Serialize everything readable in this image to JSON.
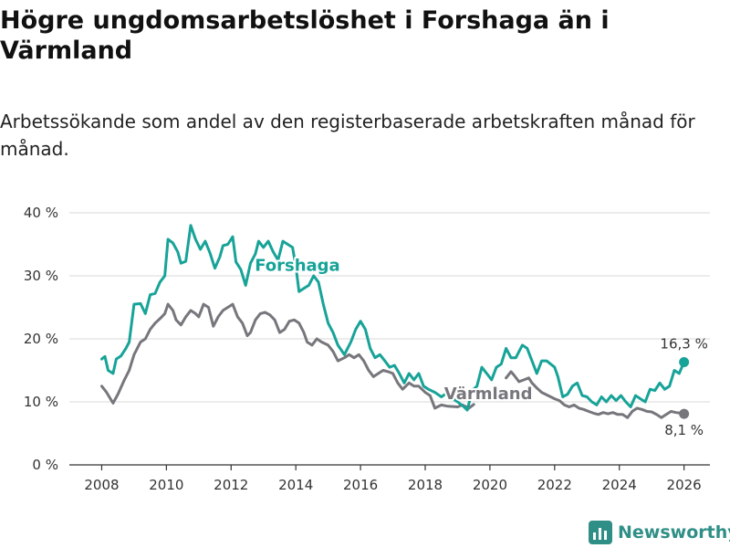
{
  "title": "Högre ungdomsarbetslöshet i Forshaga än i Värmland",
  "subtitle": "Arbetssökande som andel av den registerbaserade arbetskraften månad för månad.",
  "brand": "Newsworthy",
  "colors": {
    "forshaga": "#17a398",
    "varmland": "#77767c",
    "grid": "#d8d8d8",
    "brand": "#2f8f86"
  },
  "chart_data": {
    "type": "line",
    "title": "Högre ungdomsarbetslöshet i Forshaga än i Värmland",
    "xlabel": "",
    "ylabel": "",
    "xlim": [
      2007,
      2026.8
    ],
    "ylim": [
      0,
      40
    ],
    "y_ticks": [
      {
        "value": 0,
        "label": "0 %"
      },
      {
        "value": 10,
        "label": "10 %"
      },
      {
        "value": 20,
        "label": "20 %"
      },
      {
        "value": 30,
        "label": "30 %"
      },
      {
        "value": 40,
        "label": "40 %"
      }
    ],
    "x_ticks": [
      {
        "value": 2008,
        "label": "2008"
      },
      {
        "value": 2010,
        "label": "2010"
      },
      {
        "value": 2012,
        "label": "2012"
      },
      {
        "value": 2014,
        "label": "2014"
      },
      {
        "value": 2016,
        "label": "2016"
      },
      {
        "value": 2018,
        "label": "2018"
      },
      {
        "value": 2020,
        "label": "2020"
      },
      {
        "value": 2022,
        "label": "2022"
      },
      {
        "value": 2024,
        "label": "2024"
      },
      {
        "value": 2026,
        "label": "2026"
      }
    ],
    "series": [
      {
        "name": "Forshaga",
        "color": "#17a398",
        "label": "Forshaga",
        "end_label": "16,3 %",
        "points": [
          [
            2008.0,
            16.8
          ],
          [
            2008.1,
            17.2
          ],
          [
            2008.2,
            15.0
          ],
          [
            2008.35,
            14.5
          ],
          [
            2008.45,
            16.8
          ],
          [
            2008.6,
            17.3
          ],
          [
            2008.75,
            18.5
          ],
          [
            2008.85,
            19.5
          ],
          [
            2009.0,
            25.5
          ],
          [
            2009.2,
            25.6
          ],
          [
            2009.35,
            24.0
          ],
          [
            2009.5,
            27.0
          ],
          [
            2009.65,
            27.2
          ],
          [
            2009.8,
            29.0
          ],
          [
            2009.95,
            30.0
          ],
          [
            2010.05,
            35.8
          ],
          [
            2010.2,
            35.2
          ],
          [
            2010.35,
            33.8
          ],
          [
            2010.45,
            32.0
          ],
          [
            2010.6,
            32.3
          ],
          [
            2010.75,
            38.0
          ],
          [
            2010.9,
            35.8
          ],
          [
            2011.05,
            34.2
          ],
          [
            2011.2,
            35.5
          ],
          [
            2011.35,
            33.6
          ],
          [
            2011.5,
            31.2
          ],
          [
            2011.65,
            33.0
          ],
          [
            2011.75,
            34.8
          ],
          [
            2011.9,
            35.0
          ],
          [
            2012.05,
            36.2
          ],
          [
            2012.15,
            32.2
          ],
          [
            2012.3,
            31.0
          ],
          [
            2012.45,
            28.5
          ],
          [
            2012.6,
            32.0
          ],
          [
            2012.75,
            33.5
          ],
          [
            2012.85,
            35.5
          ],
          [
            2013.0,
            34.5
          ],
          [
            2013.15,
            35.5
          ],
          [
            2013.3,
            33.8
          ],
          [
            2013.45,
            32.5
          ],
          [
            2013.6,
            35.5
          ],
          [
            2013.75,
            35.0
          ],
          [
            2013.9,
            34.5
          ],
          [
            2014.0,
            31.5
          ],
          [
            2014.1,
            27.5
          ],
          [
            2014.25,
            28.0
          ],
          [
            2014.4,
            28.5
          ],
          [
            2014.55,
            30.0
          ],
          [
            2014.7,
            29.0
          ],
          [
            2014.85,
            25.5
          ],
          [
            2015.0,
            22.5
          ],
          [
            2015.15,
            21.0
          ],
          [
            2015.3,
            19.0
          ],
          [
            2015.5,
            17.5
          ],
          [
            2015.7,
            19.5
          ],
          [
            2015.85,
            21.5
          ],
          [
            2016.0,
            22.8
          ],
          [
            2016.15,
            21.5
          ],
          [
            2016.3,
            18.5
          ],
          [
            2016.45,
            17.0
          ],
          [
            2016.6,
            17.5
          ],
          [
            2016.75,
            16.5
          ],
          [
            2016.9,
            15.5
          ],
          [
            2017.05,
            15.8
          ],
          [
            2017.2,
            14.5
          ],
          [
            2017.35,
            13.0
          ],
          [
            2017.5,
            14.5
          ],
          [
            2017.65,
            13.5
          ],
          [
            2017.8,
            14.5
          ],
          [
            2017.95,
            12.5
          ],
          [
            2018.1,
            12.0
          ],
          [
            2018.3,
            11.5
          ],
          [
            2018.5,
            10.8
          ],
          [
            2018.7,
            11.5
          ],
          [
            2018.85,
            10.5
          ],
          [
            2019.0,
            10.0
          ],
          [
            2019.2,
            9.2
          ],
          [
            2019.3,
            8.7
          ],
          [
            2019.45,
            11.8
          ],
          [
            2019.6,
            12.5
          ],
          [
            2019.75,
            15.5
          ],
          [
            2019.9,
            14.5
          ],
          [
            2020.05,
            13.5
          ],
          [
            2020.2,
            15.5
          ],
          [
            2020.35,
            16.0
          ],
          [
            2020.5,
            18.5
          ],
          [
            2020.65,
            17.0
          ],
          [
            2020.8,
            17.0
          ],
          [
            2021.0,
            19.0
          ],
          [
            2021.15,
            18.5
          ],
          [
            2021.3,
            16.5
          ],
          [
            2021.45,
            14.5
          ],
          [
            2021.6,
            16.5
          ],
          [
            2021.75,
            16.5
          ],
          [
            2022.0,
            15.5
          ],
          [
            2022.1,
            14.0
          ],
          [
            2022.25,
            10.8
          ],
          [
            2022.4,
            11.2
          ],
          [
            2022.55,
            12.5
          ],
          [
            2022.7,
            13.0
          ],
          [
            2022.85,
            11.0
          ],
          [
            2023.0,
            10.8
          ],
          [
            2023.15,
            10.0
          ],
          [
            2023.3,
            9.5
          ],
          [
            2023.45,
            10.8
          ],
          [
            2023.6,
            10.0
          ],
          [
            2023.75,
            11.0
          ],
          [
            2023.9,
            10.2
          ],
          [
            2024.05,
            11.0
          ],
          [
            2024.2,
            10.0
          ],
          [
            2024.35,
            9.2
          ],
          [
            2024.5,
            11.0
          ],
          [
            2024.65,
            10.5
          ],
          [
            2024.8,
            10.0
          ],
          [
            2024.95,
            12.0
          ],
          [
            2025.1,
            11.8
          ],
          [
            2025.25,
            13.0
          ],
          [
            2025.4,
            12.0
          ],
          [
            2025.55,
            12.5
          ],
          [
            2025.7,
            15.0
          ],
          [
            2025.85,
            14.5
          ],
          [
            2026.0,
            16.3
          ]
        ]
      },
      {
        "name": "Värmland",
        "color": "#77767c",
        "label": "Värmland",
        "end_label": "8,1 %",
        "points": [
          [
            2008.0,
            12.5
          ],
          [
            2008.15,
            11.5
          ],
          [
            2008.35,
            9.8
          ],
          [
            2008.5,
            11.2
          ],
          [
            2008.7,
            13.5
          ],
          [
            2008.85,
            15.0
          ],
          [
            2009.0,
            17.5
          ],
          [
            2009.2,
            19.5
          ],
          [
            2009.35,
            20.0
          ],
          [
            2009.5,
            21.5
          ],
          [
            2009.65,
            22.5
          ],
          [
            2009.8,
            23.2
          ],
          [
            2009.95,
            24.0
          ],
          [
            2010.05,
            25.5
          ],
          [
            2010.2,
            24.5
          ],
          [
            2010.3,
            23.0
          ],
          [
            2010.45,
            22.2
          ],
          [
            2010.6,
            23.5
          ],
          [
            2010.75,
            24.5
          ],
          [
            2010.9,
            24.0
          ],
          [
            2011.0,
            23.5
          ],
          [
            2011.15,
            25.5
          ],
          [
            2011.3,
            25.0
          ],
          [
            2011.45,
            22.0
          ],
          [
            2011.6,
            23.5
          ],
          [
            2011.75,
            24.5
          ],
          [
            2011.9,
            25.0
          ],
          [
            2012.05,
            25.5
          ],
          [
            2012.2,
            23.5
          ],
          [
            2012.35,
            22.5
          ],
          [
            2012.5,
            20.5
          ],
          [
            2012.6,
            21.0
          ],
          [
            2012.75,
            23.0
          ],
          [
            2012.9,
            24.0
          ],
          [
            2013.05,
            24.2
          ],
          [
            2013.2,
            23.8
          ],
          [
            2013.35,
            23.0
          ],
          [
            2013.5,
            21.0
          ],
          [
            2013.65,
            21.5
          ],
          [
            2013.8,
            22.8
          ],
          [
            2013.95,
            23.0
          ],
          [
            2014.1,
            22.5
          ],
          [
            2014.25,
            21.0
          ],
          [
            2014.35,
            19.5
          ],
          [
            2014.5,
            19.0
          ],
          [
            2014.65,
            20.0
          ],
          [
            2014.8,
            19.5
          ],
          [
            2015.0,
            19.0
          ],
          [
            2015.15,
            18.0
          ],
          [
            2015.3,
            16.5
          ],
          [
            2015.5,
            17.0
          ],
          [
            2015.65,
            17.5
          ],
          [
            2015.8,
            17.0
          ],
          [
            2015.95,
            17.5
          ],
          [
            2016.1,
            16.5
          ],
          [
            2016.25,
            15.0
          ],
          [
            2016.4,
            14.0
          ],
          [
            2016.55,
            14.5
          ],
          [
            2016.7,
            15.0
          ],
          [
            2016.85,
            14.8
          ],
          [
            2017.0,
            14.5
          ],
          [
            2017.15,
            13.0
          ],
          [
            2017.3,
            12.0
          ],
          [
            2017.5,
            13.0
          ],
          [
            2017.65,
            12.5
          ],
          [
            2017.8,
            12.5
          ],
          [
            2018.0,
            11.5
          ],
          [
            2018.15,
            11.0
          ],
          [
            2018.3,
            9.0
          ],
          [
            2018.5,
            9.5
          ],
          [
            2018.7,
            9.3
          ],
          [
            2019.0,
            9.2
          ],
          [
            2019.15,
            9.5
          ],
          [
            2019.35,
            9.0
          ],
          [
            2019.5,
            9.6
          ],
          [
            2020.5,
            13.8
          ],
          [
            2020.65,
            14.8
          ],
          [
            2020.75,
            14.2
          ],
          [
            2020.9,
            13.2
          ],
          [
            2021.05,
            13.5
          ],
          [
            2021.2,
            13.8
          ],
          [
            2021.3,
            13.0
          ],
          [
            2021.45,
            12.2
          ],
          [
            2021.6,
            11.5
          ],
          [
            2021.8,
            11.0
          ],
          [
            2022.0,
            10.5
          ],
          [
            2022.15,
            10.2
          ],
          [
            2022.3,
            9.5
          ],
          [
            2022.45,
            9.2
          ],
          [
            2022.6,
            9.5
          ],
          [
            2022.75,
            9.0
          ],
          [
            2022.9,
            8.8
          ],
          [
            2023.05,
            8.5
          ],
          [
            2023.2,
            8.2
          ],
          [
            2023.35,
            8.0
          ],
          [
            2023.5,
            8.3
          ],
          [
            2023.65,
            8.1
          ],
          [
            2023.8,
            8.3
          ],
          [
            2023.95,
            8.0
          ],
          [
            2024.1,
            8.0
          ],
          [
            2024.25,
            7.5
          ],
          [
            2024.4,
            8.5
          ],
          [
            2024.55,
            9.0
          ],
          [
            2024.7,
            8.8
          ],
          [
            2024.85,
            8.5
          ],
          [
            2025.0,
            8.4
          ],
          [
            2025.15,
            8.0
          ],
          [
            2025.3,
            7.5
          ],
          [
            2025.45,
            8.0
          ],
          [
            2025.6,
            8.5
          ],
          [
            2025.75,
            8.3
          ],
          [
            2025.9,
            8.2
          ],
          [
            2026.0,
            8.1
          ]
        ]
      }
    ]
  }
}
